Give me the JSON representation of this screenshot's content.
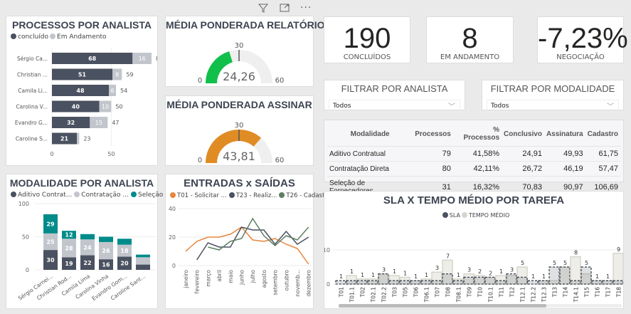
{
  "toolbar": {
    "icons": [
      "filter-icon",
      "focus-mode-icon",
      "more-options-icon"
    ]
  },
  "colors": {
    "dark": "#4a5160",
    "light": "#c2c6cc",
    "teal": "#008b8b",
    "orange": "#e8853b",
    "green": "#5f7f63",
    "gaugeGreen": "#11c04a",
    "gaugeOrange": "#e08c25",
    "track": "#efefef",
    "tempo": "#d6d5cc"
  },
  "processos": {
    "title": "PROCESSOS POR ANALISTA",
    "legend": [
      "concluído",
      "Em Andamento"
    ],
    "chart_data": {
      "type": "bar",
      "orientation": "horizontal",
      "stacked": true,
      "categories": [
        "Sérgio Ca...",
        "Christian ...",
        "Camila Li...",
        "Carolina V...",
        "Evandro G...",
        "Caroline S..."
      ],
      "series": [
        {
          "name": "concluído",
          "values": [
            68,
            51,
            48,
            40,
            32,
            21
          ]
        },
        {
          "name": "Em Andamento",
          "values": [
            16,
            8,
            6,
            10,
            15,
            2
          ]
        }
      ],
      "totals": [
        84,
        59,
        54,
        50,
        47,
        23
      ],
      "xticks": [
        "0",
        "50"
      ],
      "xlim": [
        0,
        90
      ]
    }
  },
  "modalidade": {
    "title": "MODALIDADE POR ANALISTA",
    "legend": [
      "Aditivo Contrat...",
      "Contratação ...",
      "Seleção de ..."
    ],
    "chart_data": {
      "type": "bar",
      "stacked": true,
      "categories": [
        "Sérgio Carnei...",
        "Christian Rod...",
        "Camila Lima",
        "Carolina Vinha",
        "Evandro Gom...",
        "Caroline Sant..."
      ],
      "series": [
        {
          "name": "Aditivo Contrat...",
          "values": [
            30,
            19,
            22,
            16,
            20,
            8
          ]
        },
        {
          "name": "Contratação ...",
          "values": [
            25,
            28,
            24,
            26,
            18,
            11
          ]
        },
        {
          "name": "Seleção de ...",
          "values": [
            29,
            12,
            8,
            8,
            9,
            4
          ]
        }
      ],
      "yticks": [
        "0",
        "50",
        "100"
      ],
      "ylim": [
        0,
        100
      ]
    }
  },
  "gauge1": {
    "title": "MÉDIA PONDERADA RELATÓRIO",
    "value": 24.26,
    "value_label": "24,26",
    "min": "0",
    "max": "60",
    "target": "30"
  },
  "gauge2": {
    "title": "MÉDIA PONDERADA ASSINAR",
    "value": 43.81,
    "value_label": "43,81",
    "min": "0",
    "max": "60",
    "target": "30"
  },
  "entradas": {
    "title": "ENTRADAS x SAÍDAS",
    "legend": [
      "T01 - Solicitar ...",
      "T23 - Realiz...",
      "T26 - Cadast..."
    ],
    "chart_data": {
      "type": "line",
      "categories": [
        "janeiro",
        "fevereiro",
        "março",
        "abril",
        "maio",
        "junho",
        "julho",
        "agosto",
        "setembro",
        "outubro",
        "novemb...",
        "dezembro"
      ],
      "series": [
        {
          "name": "T01 - Solicitar ...",
          "values": [
            10,
            17,
            20,
            20,
            22,
            27,
            18,
            17,
            19,
            15,
            12,
            1
          ]
        },
        {
          "name": "T23 - Realiz...",
          "values": [
            null,
            4,
            16,
            13,
            13,
            27,
            25,
            25,
            15,
            24,
            15,
            20
          ]
        },
        {
          "name": "T26 - Cadast...",
          "values": [
            null,
            null,
            13,
            11,
            17,
            19,
            33,
            21,
            14,
            21,
            18,
            27
          ]
        }
      ],
      "yticks": [
        "0",
        "20",
        "40"
      ],
      "ylim": [
        0,
        40
      ]
    }
  },
  "kpis": [
    {
      "value": "190",
      "label": "CONCLUÍDOS"
    },
    {
      "value": "8",
      "label": "EM ANDAMENTO"
    },
    {
      "value": "-7,23%",
      "label": "NEGOCIAÇÃO"
    }
  ],
  "filters": [
    {
      "title": "FILTRAR POR ANALISTA",
      "value": "Todos"
    },
    {
      "title": "FILTRAR POR MODALIDADE",
      "value": "Todos"
    }
  ],
  "table": {
    "headers": [
      "Modalidade",
      "Processos",
      "% Processos",
      "Conclusivo",
      "Assinatura",
      "Cadastro"
    ],
    "rows": [
      [
        "Aditivo Contratual",
        "79",
        "41,58%",
        "24,91",
        "49,93",
        "61,75"
      ],
      [
        "Contratação Direta",
        "80",
        "42,11%",
        "26,72",
        "46,19",
        "57,47"
      ],
      [
        "Seleção de Fornecedores",
        "31",
        "16,32%",
        "70,83",
        "90,97",
        "106,69"
      ]
    ]
  },
  "sla": {
    "title": "SLA X TEMPO MÉDIO POR TAREFA",
    "legend": [
      "SLA",
      "TEMPO MÉDIO"
    ],
    "chart_data": {
      "type": "bar",
      "categories": [
        "T01",
        "T01.1",
        "T02",
        "T02.1",
        "T02.2",
        "T03",
        "T05",
        "T06",
        "T06.1",
        "T07",
        "T08",
        "T08.1",
        "T09",
        "T10",
        "T10.1",
        "T11",
        "T12",
        "T12.1",
        "T12.2",
        "T12.3",
        "T13",
        "T14",
        "T14.1",
        "T15",
        "T16",
        "T17",
        "T18"
      ],
      "series": [
        {
          "name": "SLA",
          "values": [
            1,
            1,
            1,
            1,
            3,
            1,
            1,
            1,
            1,
            1,
            3,
            1,
            2,
            2,
            2,
            1,
            3,
            2,
            1,
            1,
            5,
            5,
            1,
            5,
            1,
            1,
            1
          ]
        },
        {
          "name": "TEMPO MÉDIO",
          "values": [
            0,
            2.5,
            1.5,
            1.5,
            3,
            2.5,
            2,
            1,
            1.5,
            3.5,
            7,
            1.5,
            3,
            2.5,
            2,
            2.5,
            2.5,
            5,
            0,
            1,
            1,
            5,
            8,
            3,
            1,
            1,
            9
          ]
        }
      ],
      "top_labels": [
        "1",
        "1",
        "1",
        "1",
        "3",
        "1",
        "1",
        "1",
        "1",
        "3",
        "7",
        "1",
        "3",
        "2",
        "2",
        "1",
        "3",
        "5",
        "1",
        "1",
        "5",
        "5",
        "8",
        "5",
        "1",
        "1",
        "9"
      ],
      "yticks": [
        "0",
        "10"
      ],
      "ylim": [
        0,
        10
      ]
    }
  }
}
